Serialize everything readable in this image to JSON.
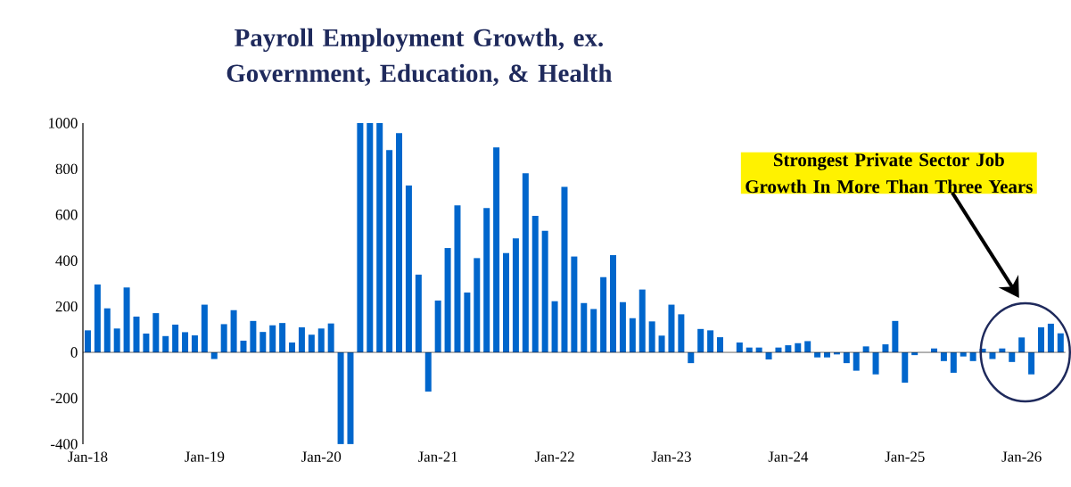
{
  "chart_data": {
    "type": "bar",
    "title": "Payroll Employment Growth, ex. Government, Education, & Health",
    "categories": [
      "Jan-18",
      null,
      null,
      null,
      null,
      null,
      null,
      null,
      null,
      null,
      null,
      null,
      "Jan-19",
      null,
      null,
      null,
      null,
      null,
      null,
      null,
      null,
      null,
      null,
      null,
      "Jan-20",
      null,
      null,
      null,
      null,
      null,
      null,
      null,
      null,
      null,
      null,
      null,
      "Jan-21",
      null,
      null,
      null,
      null,
      null,
      null,
      null,
      null,
      null,
      null,
      null,
      "Jan-22",
      null,
      null,
      null,
      null,
      null,
      null,
      null,
      null,
      null,
      null,
      null,
      "Jan-23",
      null,
      null,
      null,
      null,
      null,
      null,
      null,
      null,
      null,
      null,
      null,
      "Jan-24",
      null,
      null,
      null,
      null,
      null,
      null,
      null,
      null,
      null,
      null,
      null,
      "Jan-25",
      null,
      null,
      null,
      null,
      null,
      null,
      null,
      null,
      null,
      null,
      null,
      "Jan-26",
      null,
      null,
      null,
      null
    ],
    "values": [
      96,
      296,
      192,
      104,
      283,
      156,
      82,
      171,
      71,
      121,
      88,
      74,
      208,
      -29,
      123,
      184,
      51,
      137,
      89,
      118,
      128,
      43,
      109,
      77,
      104,
      126,
      -400,
      -400,
      1000,
      1000,
      1000,
      882,
      956,
      728,
      339,
      -171,
      226,
      455,
      641,
      261,
      411,
      629,
      894,
      433,
      497,
      781,
      595,
      530,
      223,
      722,
      418,
      215,
      189,
      328,
      424,
      219,
      149,
      274,
      135,
      73,
      208,
      166,
      -47,
      102,
      96,
      66,
      null,
      43,
      21,
      21,
      -31,
      21,
      31,
      40,
      49,
      -22,
      -22,
      -9,
      -47,
      -80,
      26,
      -96,
      35,
      137,
      -132,
      -12,
      null,
      17,
      -38,
      -89,
      -18,
      -38,
      16,
      -29,
      17,
      -42,
      65,
      -96,
      109,
      125,
      83
    ],
    "color": "#0066cc",
    "ylim": [
      -400,
      1000
    ],
    "yticks": [
      -400,
      -200,
      0,
      200,
      400,
      600,
      800,
      1000
    ],
    "annotations": [
      "Strongest Private Sector Job Growth In More Than Three Years"
    ]
  }
}
